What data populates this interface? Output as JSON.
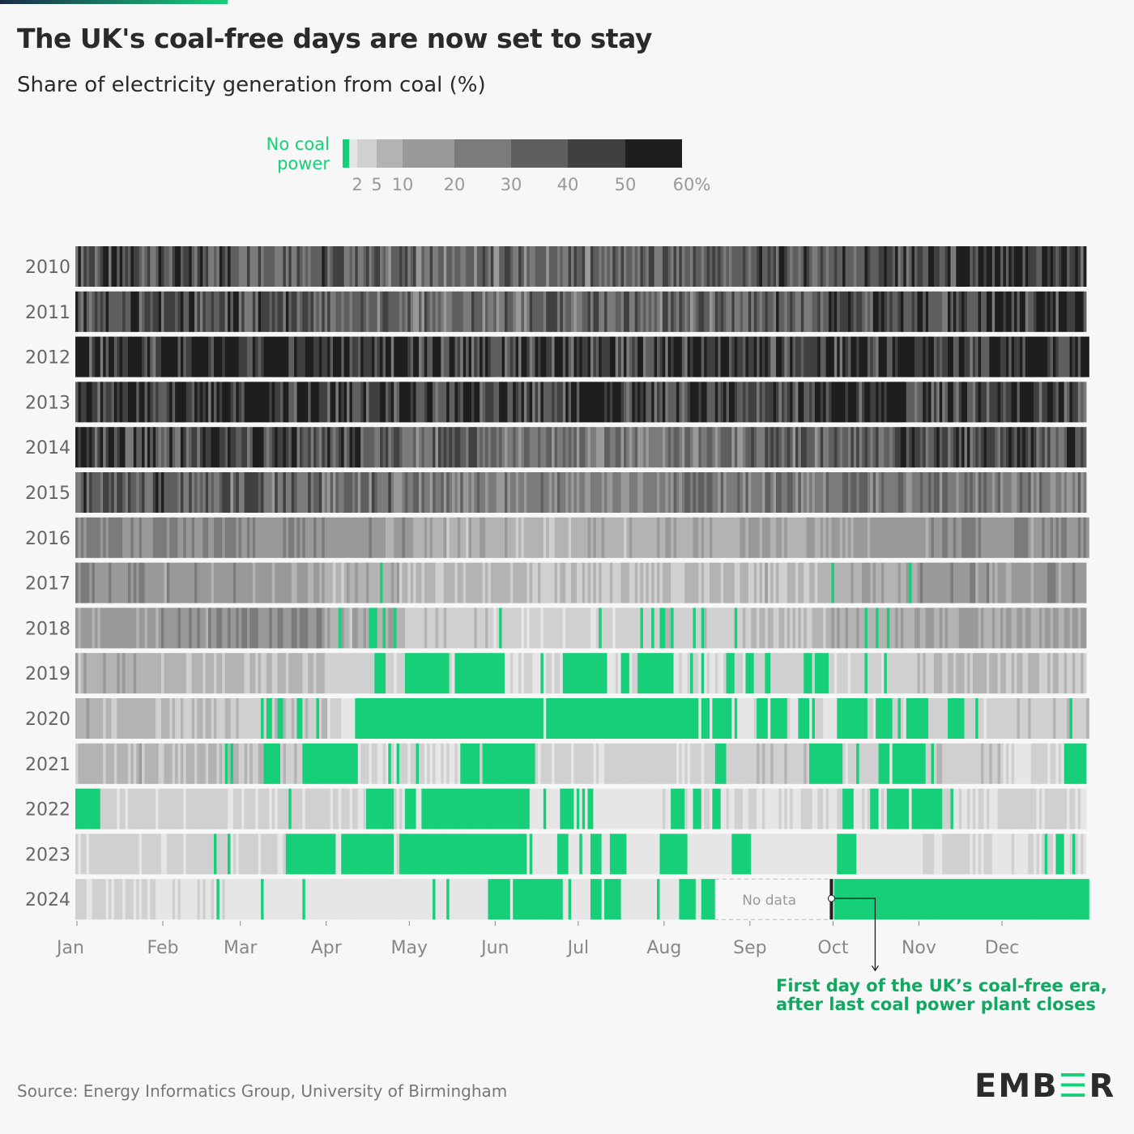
{
  "header": {
    "title": "The UK's coal-free days are now set to stay",
    "subtitle": "Share of electricity generation from coal (%)"
  },
  "footer": {
    "source": "Source: Energy Informatics Group, University of Birmingham",
    "logo": "EMBER"
  },
  "colors": {
    "coal_free": "#17cf79",
    "bins": [
      "#e6e6e6",
      "#d0d0d0",
      "#b3b3b3",
      "#999999",
      "#7b7b7b",
      "#5f5f5f",
      "#404040",
      "#1e1e1e"
    ],
    "annotation": "#12a862",
    "text": "#2a2a2a",
    "axis": "#888888"
  },
  "chart_data": {
    "type": "heatmap",
    "title": "The UK's coal-free days are now set to stay",
    "subtitle": "Share of electricity generation from coal (%)",
    "legend": {
      "zero_label_line1": "No coal",
      "zero_label_line2": "power",
      "bin_edges": [
        0,
        2,
        5,
        10,
        20,
        30,
        40,
        50,
        60
      ],
      "tick_labels": [
        "2",
        "5",
        "10",
        "20",
        "30",
        "40",
        "50",
        "60%"
      ],
      "placement": "top"
    },
    "x_tick_labels": [
      "Jan",
      "Feb",
      "Mar",
      "Apr",
      "May",
      "Jun",
      "Jul",
      "Aug",
      "Sep",
      "Oct",
      "Nov",
      "Dec"
    ],
    "note": "Approximate monthly average coal share (%) per year; coal-free days as day-of-year ranges (0-based, inclusive)",
    "years": [
      {
        "year": "2010",
        "monthly_share": [
          42,
          40,
          38,
          34,
          30,
          30,
          32,
          34,
          36,
          40,
          42,
          46
        ],
        "coal_free_days": []
      },
      {
        "year": "2011",
        "monthly_share": [
          42,
          40,
          36,
          30,
          30,
          32,
          33,
          34,
          36,
          42,
          46,
          48
        ],
        "coal_free_days": []
      },
      {
        "year": "2012",
        "monthly_share": [
          50,
          54,
          52,
          50,
          46,
          44,
          44,
          46,
          46,
          50,
          52,
          50
        ],
        "coal_free_days": []
      },
      {
        "year": "2013",
        "monthly_share": [
          48,
          48,
          48,
          46,
          44,
          44,
          44,
          46,
          46,
          46,
          46,
          44
        ],
        "coal_free_days": []
      },
      {
        "year": "2014",
        "monthly_share": [
          44,
          42,
          40,
          38,
          32,
          25,
          24,
          28,
          34,
          38,
          40,
          42
        ],
        "coal_free_days": []
      },
      {
        "year": "2015",
        "monthly_share": [
          36,
          36,
          32,
          28,
          24,
          22,
          22,
          24,
          26,
          28,
          26,
          22
        ],
        "coal_free_days": []
      },
      {
        "year": "2016",
        "monthly_share": [
          20,
          20,
          18,
          14,
          8,
          7,
          8,
          9,
          10,
          14,
          18,
          16
        ],
        "coal_free_days": []
      },
      {
        "year": "2017",
        "monthly_share": [
          18,
          16,
          12,
          8,
          6,
          5,
          5,
          6,
          7,
          9,
          16,
          15
        ],
        "coal_free_days": [
          [
            110,
            110
          ],
          [
            273,
            273
          ],
          [
            301,
            301
          ]
        ]
      },
      {
        "year": "2018",
        "monthly_share": [
          14,
          16,
          18,
          8,
          4,
          3,
          3,
          4,
          6,
          8,
          12,
          10
        ],
        "coal_free_days": [
          [
            95,
            95
          ],
          [
            106,
            108
          ],
          [
            111,
            111
          ],
          [
            115,
            115
          ],
          [
            153,
            153
          ],
          [
            189,
            189
          ],
          [
            204,
            204
          ],
          [
            208,
            208
          ],
          [
            211,
            212
          ],
          [
            215,
            215
          ],
          [
            223,
            223
          ],
          [
            226,
            226
          ],
          [
            238,
            238
          ],
          [
            285,
            285
          ],
          [
            289,
            289
          ],
          [
            293,
            293
          ]
        ]
      },
      {
        "year": "2019",
        "monthly_share": [
          8,
          7,
          5,
          3,
          2,
          2,
          2,
          2,
          3,
          3,
          5,
          5
        ],
        "coal_free_days": [
          [
            108,
            111
          ],
          [
            119,
            128
          ],
          [
            129,
            134
          ],
          [
            137,
            154
          ],
          [
            168,
            168
          ],
          [
            176,
            191
          ],
          [
            197,
            199
          ],
          [
            203,
            215
          ],
          [
            222,
            222
          ],
          [
            226,
            226
          ],
          [
            235,
            237
          ],
          [
            242,
            244
          ],
          [
            249,
            250
          ],
          [
            263,
            265
          ],
          [
            267,
            271
          ],
          [
            285,
            285
          ],
          [
            292,
            292
          ]
        ]
      },
      {
        "year": "2020",
        "monthly_share": [
          7,
          5,
          4,
          2,
          1,
          1,
          1,
          1,
          2,
          2,
          3,
          4
        ],
        "coal_free_days": [
          [
            67,
            67
          ],
          [
            69,
            70
          ],
          [
            73,
            74
          ],
          [
            80,
            81
          ],
          [
            87,
            87
          ],
          [
            101,
            168
          ],
          [
            170,
            224
          ],
          [
            226,
            228
          ],
          [
            230,
            236
          ],
          [
            238,
            238
          ],
          [
            246,
            249
          ],
          [
            251,
            256
          ],
          [
            261,
            264
          ],
          [
            266,
            266
          ],
          [
            275,
            279
          ],
          [
            280,
            285
          ],
          [
            289,
            294
          ],
          [
            297,
            297
          ],
          [
            300,
            307
          ],
          [
            315,
            320
          ],
          [
            325,
            325
          ],
          [
            359,
            359
          ]
        ]
      },
      {
        "year": "2021",
        "monthly_share": [
          7,
          6,
          4,
          2,
          2,
          2,
          3,
          3,
          4,
          3,
          4,
          2
        ],
        "coal_free_days": [
          [
            54,
            54
          ],
          [
            56,
            56
          ],
          [
            68,
            73
          ],
          [
            82,
            96
          ],
          [
            97,
            101
          ],
          [
            113,
            113
          ],
          [
            116,
            116
          ],
          [
            123,
            123
          ],
          [
            139,
            145
          ],
          [
            147,
            165
          ],
          [
            231,
            234
          ],
          [
            265,
            269
          ],
          [
            270,
            276
          ],
          [
            282,
            282
          ],
          [
            290,
            293
          ],
          [
            295,
            297
          ],
          [
            298,
            301
          ],
          [
            302,
            306
          ],
          [
            309,
            309
          ],
          [
            357,
            364
          ]
        ]
      },
      {
        "year": "2022",
        "monthly_share": [
          3,
          3,
          3,
          2,
          1,
          1,
          1,
          2,
          2,
          2,
          2,
          3
        ],
        "coal_free_days": [
          [
            0,
            8
          ],
          [
            77,
            77
          ],
          [
            105,
            108
          ],
          [
            109,
            114
          ],
          [
            119,
            122
          ],
          [
            125,
            163
          ],
          [
            169,
            169
          ],
          [
            175,
            179
          ],
          [
            181,
            181
          ],
          [
            183,
            183
          ],
          [
            185,
            186
          ],
          [
            215,
            219
          ],
          [
            223,
            225
          ],
          [
            230,
            232
          ],
          [
            277,
            280
          ],
          [
            287,
            289
          ],
          [
            293,
            296
          ],
          [
            297,
            300
          ],
          [
            302,
            304
          ],
          [
            305,
            312
          ],
          [
            316,
            316
          ]
        ]
      },
      {
        "year": "2023",
        "monthly_share": [
          3,
          3,
          3,
          2,
          1,
          1,
          1,
          1,
          1,
          1,
          2,
          2
        ],
        "coal_free_days": [
          [
            50,
            50
          ],
          [
            55,
            55
          ],
          [
            76,
            84
          ],
          [
            85,
            88
          ],
          [
            89,
            93
          ],
          [
            96,
            114
          ],
          [
            117,
            143
          ],
          [
            144,
            162
          ],
          [
            164,
            164
          ],
          [
            174,
            177
          ],
          [
            182,
            182
          ],
          [
            186,
            189
          ],
          [
            193,
            198
          ],
          [
            211,
            215
          ],
          [
            216,
            220
          ],
          [
            237,
            243
          ],
          [
            275,
            280
          ],
          [
            281,
            281
          ],
          [
            350,
            350
          ],
          [
            354,
            356
          ],
          [
            360,
            360
          ]
        ]
      },
      {
        "year": "2024",
        "monthly_share": [
          2,
          2,
          1,
          1,
          1,
          1,
          1,
          1,
          1,
          0,
          0,
          0
        ],
        "coal_free_days": [
          [
            51,
            51
          ],
          [
            67,
            67
          ],
          [
            82,
            82
          ],
          [
            129,
            129
          ],
          [
            134,
            134
          ],
          [
            149,
            156
          ],
          [
            158,
            175
          ],
          [
            178,
            178
          ],
          [
            186,
            189
          ],
          [
            191,
            196
          ],
          [
            210,
            210
          ],
          [
            218,
            222
          ],
          [
            223,
            223
          ],
          [
            226,
            230
          ],
          [
            274,
            365
          ]
        ],
        "no_data_days": [
          231,
          273
        ]
      }
    ],
    "no_data_label": "No data",
    "annotation": {
      "line1": "First day of the UK’s coal-free era,",
      "line2": "after last coal power plant closes"
    }
  }
}
